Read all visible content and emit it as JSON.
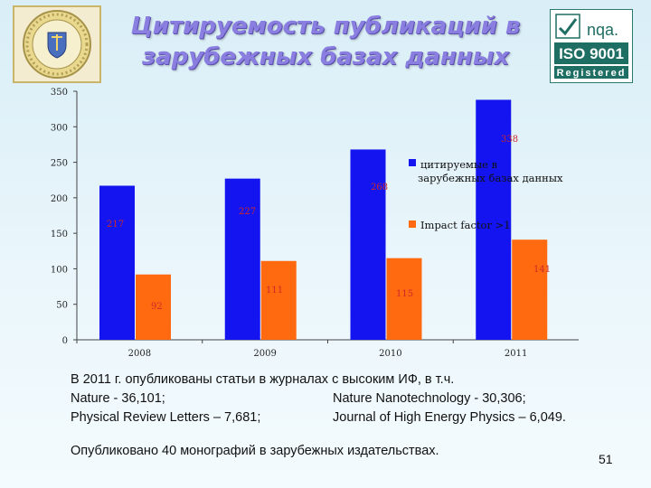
{
  "slide": {
    "title": "Цитируемость публикаций в зарубежных базах данных",
    "page_number": "51"
  },
  "logos": {
    "left_icon": "university-seal",
    "right_brand": "nqa.",
    "right_standard": "ISO 9001",
    "right_status": "Registered"
  },
  "chart_data": {
    "type": "bar",
    "categories": [
      "2008",
      "2009",
      "2010",
      "2011"
    ],
    "series": [
      {
        "name": "цитируемые в зарубежных базах данных",
        "values": [
          217,
          227,
          268,
          338
        ],
        "color": "#1414f0",
        "value_label_color": "#cc2a2a"
      },
      {
        "name": "Impact factor >1",
        "values": [
          92,
          111,
          115,
          141
        ],
        "color": "#ff6a10",
        "value_label_color": "#cc2a2a"
      }
    ],
    "ylim": [
      0,
      350
    ],
    "yticks": [
      0,
      50,
      100,
      150,
      200,
      250,
      300,
      350
    ],
    "grid": false,
    "legend": "right",
    "xlabel": "",
    "ylabel": ""
  },
  "info": {
    "line1": "В 2011 г. опубликованы статьи в журналах с высоким ИФ, в т.ч.",
    "row2_left": "Nature - 36,101;",
    "row2_right": "Nature Nanotechnology - 30,306;",
    "row3_left": "Physical Review Letters – 7,681;",
    "row3_right": "Journal of High Energy Physics – 6,049.",
    "monographs": "Опубликовано 40 монографий в зарубежных издательствах."
  }
}
